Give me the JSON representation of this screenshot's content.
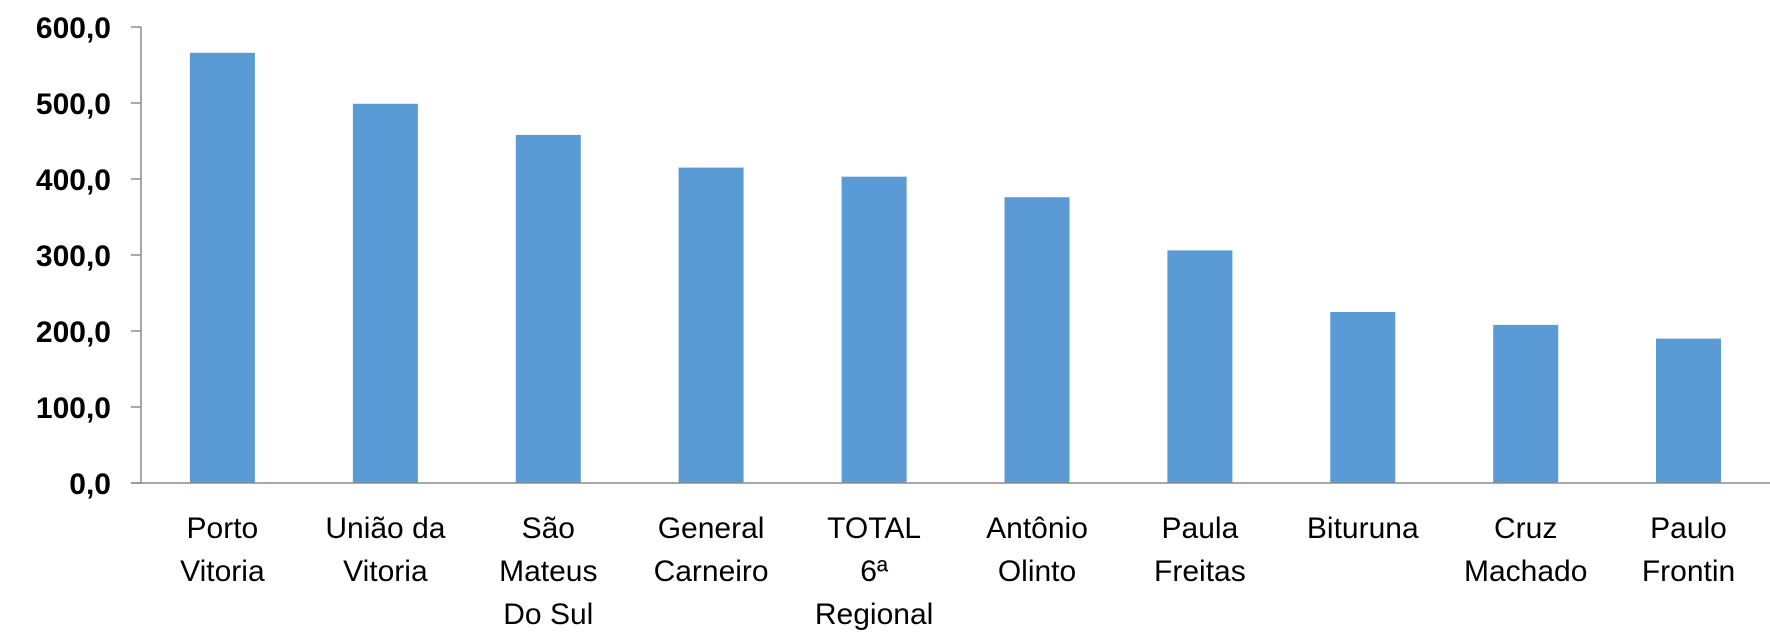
{
  "chart_data": {
    "type": "bar",
    "title": "",
    "xlabel": "",
    "ylabel": "",
    "categories": [
      [
        "Porto",
        "Vitoria"
      ],
      [
        "União da",
        "Vitoria"
      ],
      [
        "São",
        "Mateus",
        "Do Sul"
      ],
      [
        "General",
        "Carneiro"
      ],
      [
        "TOTAL",
        "6ª",
        "Regional"
      ],
      [
        "Antônio",
        "Olinto"
      ],
      [
        "Paula",
        "Freitas"
      ],
      [
        "Bituruna"
      ],
      [
        "Cruz",
        "Machado"
      ],
      [
        "Paulo",
        "Frontin"
      ]
    ],
    "values": [
      566,
      499,
      458,
      415,
      403,
      376,
      306,
      225,
      208,
      190
    ],
    "ylim": [
      0,
      600
    ],
    "yticks": [
      {
        "value": 0,
        "label": "0,0"
      },
      {
        "value": 100,
        "label": "100,0"
      },
      {
        "value": 200,
        "label": "200,0"
      },
      {
        "value": 300,
        "label": "300,0"
      },
      {
        "value": 400,
        "label": "400,0"
      },
      {
        "value": 500,
        "label": "500,0"
      },
      {
        "value": 600,
        "label": "600,0"
      }
    ],
    "grid": false,
    "legend": "none",
    "bar_color": "#5B9BD5",
    "axis_color": "#8C8C8C"
  }
}
